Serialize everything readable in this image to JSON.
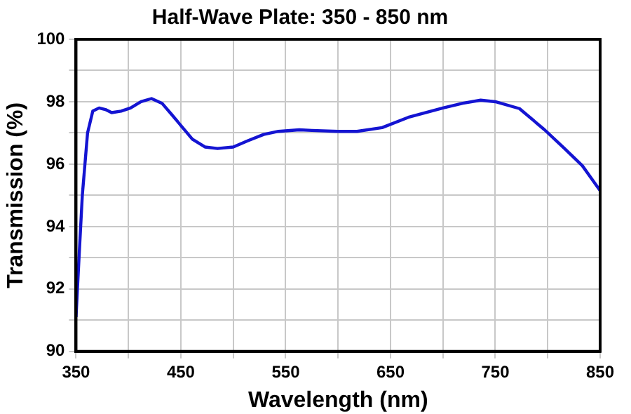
{
  "chart_data": {
    "type": "line",
    "title": "Half-Wave Plate: 350 - 850 nm",
    "xlabel": "Wavelength (nm)",
    "ylabel": "Transmission (%)",
    "series": [
      {
        "color": "#1414d2",
        "x": [
          350,
          353,
          356,
          361,
          366,
          372,
          378,
          384,
          393,
          402,
          412,
          422,
          432,
          441,
          451,
          461,
          473,
          485,
          500,
          514,
          529,
          543,
          563,
          575,
          600,
          618,
          642,
          667,
          700,
          719,
          736,
          750,
          773,
          797,
          816,
          833,
          850
        ],
        "values": [
          91.1,
          93.1,
          95.0,
          97.0,
          97.7,
          97.8,
          97.75,
          97.65,
          97.7,
          97.8,
          98.0,
          98.1,
          97.95,
          97.6,
          97.2,
          96.8,
          96.55,
          96.5,
          96.55,
          96.75,
          96.95,
          97.05,
          97.1,
          97.08,
          97.05,
          97.05,
          97.17,
          97.5,
          97.8,
          97.95,
          98.05,
          98.0,
          97.78,
          97.1,
          96.5,
          95.95,
          95.15
        ]
      }
    ],
    "xlim": [
      350,
      850
    ],
    "xticks": [
      350,
      {
        "value": 400,
        "label": null
      },
      450,
      {
        "value": 500,
        "label": null
      },
      550,
      {
        "value": 600,
        "label": null
      },
      650,
      {
        "value": 700,
        "label": null
      },
      750,
      {
        "value": 800,
        "label": null
      },
      850
    ],
    "ylim": [
      90,
      100
    ],
    "yticks": [
      90,
      {
        "value": 91,
        "label": null
      },
      92,
      {
        "value": 93,
        "label": null
      },
      94,
      {
        "value": 95,
        "label": null
      },
      96,
      {
        "value": 97,
        "label": null
      },
      98,
      {
        "value": 99,
        "label": null
      },
      100
    ],
    "grid": true,
    "legend": false,
    "marker": "none",
    "line_style": "solid"
  }
}
